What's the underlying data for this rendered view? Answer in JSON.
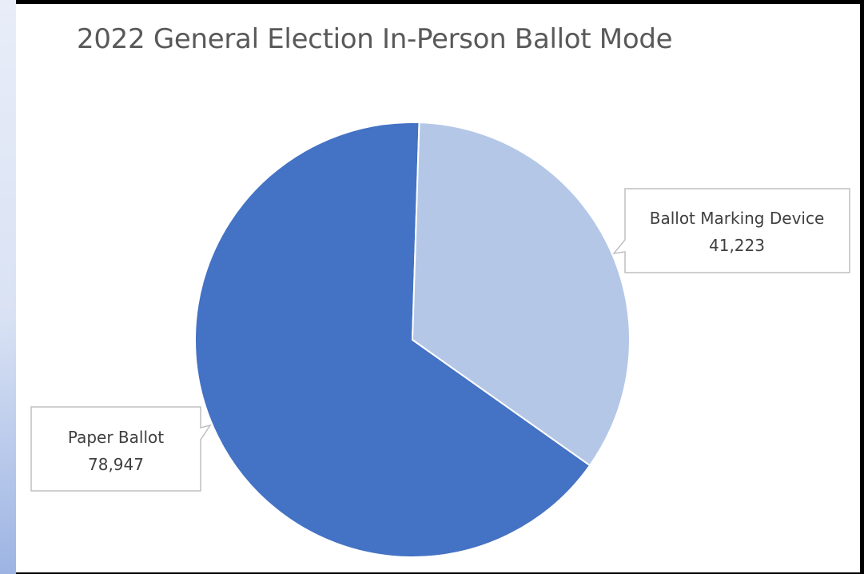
{
  "chart_data": {
    "type": "pie",
    "title": "2022 General Election In-Person Ballot Mode",
    "categories": [
      "Paper Ballot",
      "Ballot Marking Device"
    ],
    "values": [
      78947,
      41223
    ],
    "value_labels": [
      "78,947",
      "41,223"
    ],
    "colors": [
      "#4472c4",
      "#b4c7e7"
    ],
    "legend": "none",
    "data_labels": "callouts"
  }
}
